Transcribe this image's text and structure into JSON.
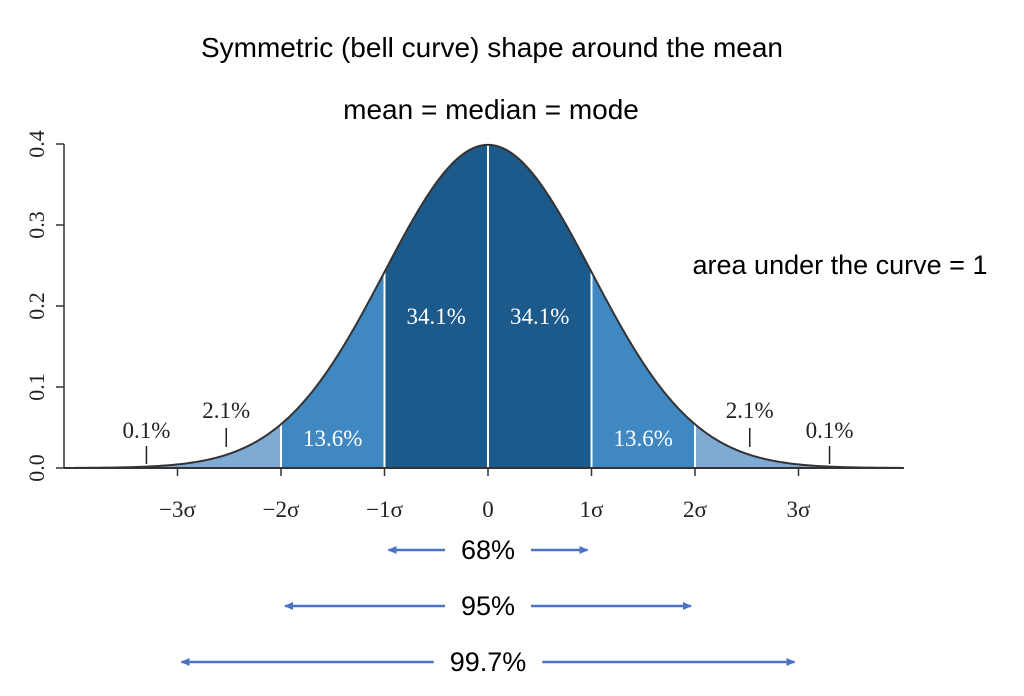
{
  "page": {
    "title": "Symmetric (bell curve) shape around the mean",
    "subtitle": "mean = median = mode",
    "area_note": "area under the curve = 1"
  },
  "colors": {
    "region_1sd": "#1d5a8c",
    "region_2sd": "#3f88c2",
    "region_3sd": "#7faad3",
    "curve": "#333333",
    "arrow": "#4a72c4"
  },
  "chart_data": {
    "type": "area",
    "distribution": "normal",
    "mean": 0,
    "sd": 1,
    "xlim": [
      -4,
      4
    ],
    "ylim": [
      0,
      0.4
    ],
    "x_ticks": [
      -3,
      -2,
      -1,
      0,
      1,
      2,
      3
    ],
    "x_tick_labels": [
      "−3σ",
      "−2σ",
      "−1σ",
      "0",
      "1σ",
      "2σ",
      "3σ"
    ],
    "y_ticks": [
      0.0,
      0.1,
      0.2,
      0.3,
      0.4
    ],
    "y_tick_labels": [
      "0.0",
      "0.1",
      "0.2",
      "0.3",
      "0.4"
    ],
    "regions": [
      {
        "from": -4,
        "to": -3,
        "percent": 0.1,
        "label": "0.1%"
      },
      {
        "from": -3,
        "to": -2,
        "percent": 2.1,
        "label": "2.1%"
      },
      {
        "from": -2,
        "to": -1,
        "percent": 13.6,
        "label": "13.6%"
      },
      {
        "from": -1,
        "to": 0,
        "percent": 34.1,
        "label": "34.1%"
      },
      {
        "from": 0,
        "to": 1,
        "percent": 34.1,
        "label": "34.1%"
      },
      {
        "from": 1,
        "to": 2,
        "percent": 13.6,
        "label": "13.6%"
      },
      {
        "from": 2,
        "to": 3,
        "percent": 2.1,
        "label": "2.1%"
      },
      {
        "from": 3,
        "to": 4,
        "percent": 0.1,
        "label": "0.1%"
      }
    ],
    "ranges": [
      {
        "from": -1,
        "to": 1,
        "label": "68%"
      },
      {
        "from": -2,
        "to": 2,
        "label": "95%"
      },
      {
        "from": -3,
        "to": 3,
        "label": "99.7%"
      }
    ]
  }
}
